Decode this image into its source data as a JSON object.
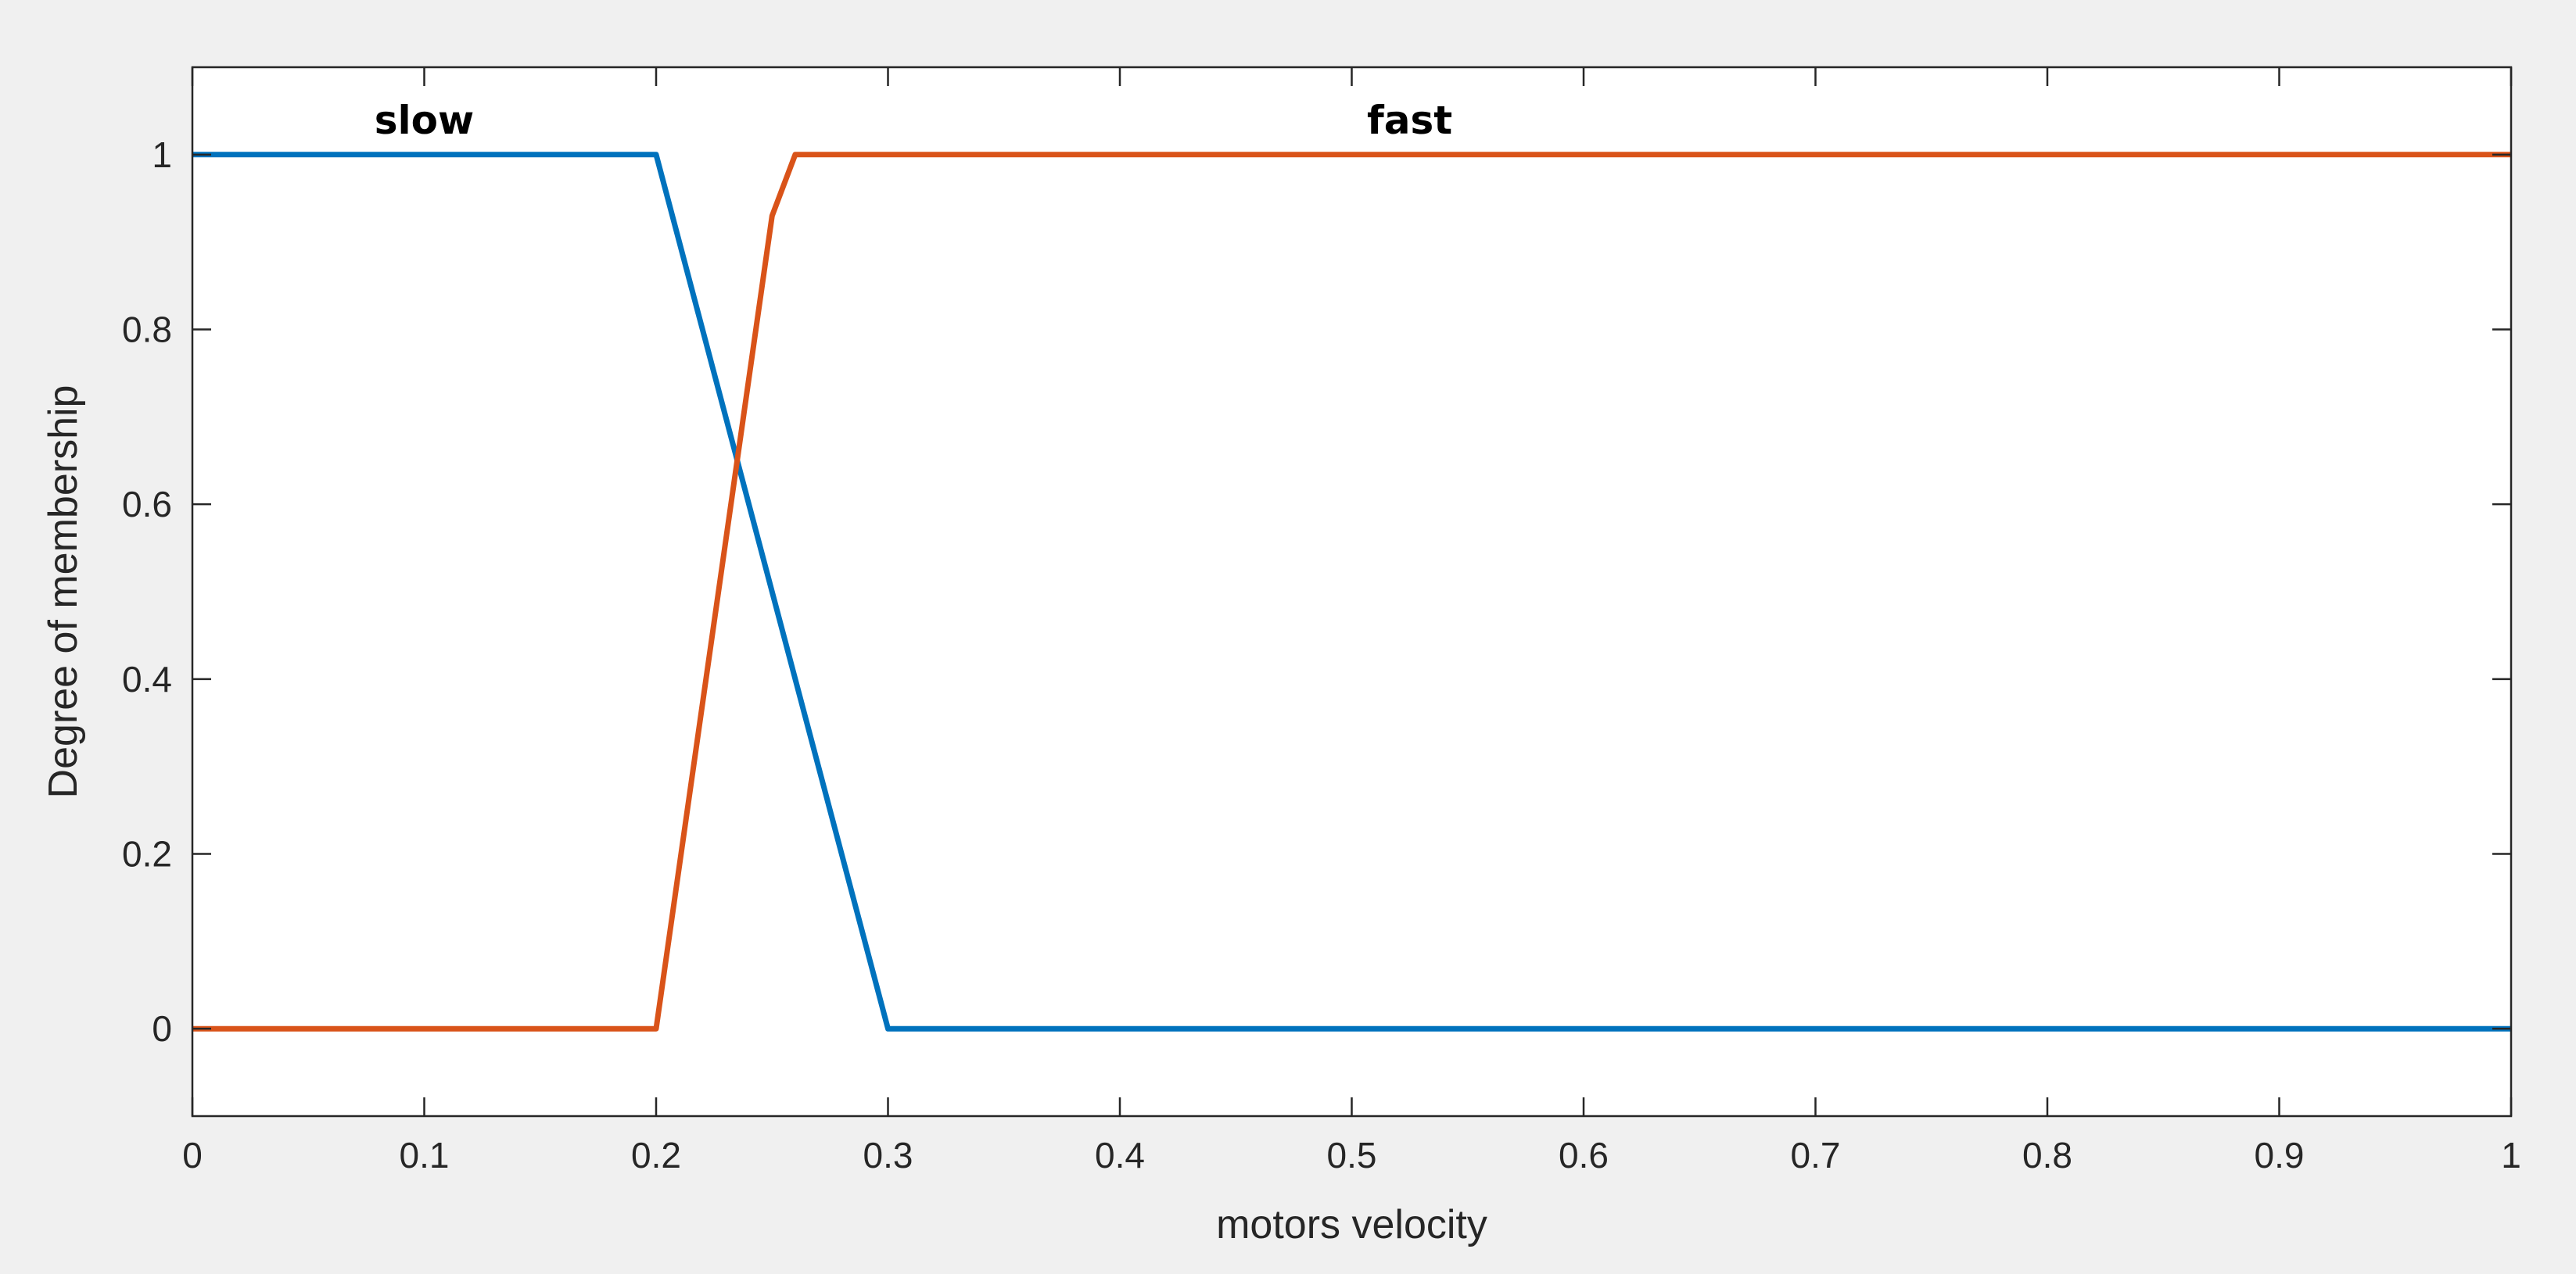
{
  "chart_data": {
    "type": "line",
    "title": "",
    "xlabel": "motors  velocity",
    "ylabel": "Degree of membership",
    "xlim": [
      0,
      1
    ],
    "ylim": [
      -0.1,
      1.1
    ],
    "xticks": [
      0,
      0.1,
      0.2,
      0.3,
      0.4,
      0.5,
      0.6,
      0.7,
      0.8,
      0.9,
      1
    ],
    "xtick_labels": [
      "0",
      "0.1",
      "0.2",
      "0.3",
      "0.4",
      "0.5",
      "0.6",
      "0.7",
      "0.8",
      "0.9",
      "1"
    ],
    "yticks": [
      0,
      0.2,
      0.4,
      0.6,
      0.8,
      1
    ],
    "ytick_labels": [
      "0",
      "0.2",
      "0.4",
      "0.6",
      "0.8",
      "1"
    ],
    "grid": false,
    "series": [
      {
        "name": "slow",
        "color": "#0072BD",
        "x": [
          0,
          0.2,
          0.3,
          1
        ],
        "y": [
          1,
          1,
          0,
          0
        ]
      },
      {
        "name": "fast",
        "color": "#D95319",
        "x": [
          0,
          0.2,
          0.25,
          0.26,
          1
        ],
        "y": [
          0,
          0,
          0.93,
          1,
          1
        ]
      }
    ],
    "annotations": [
      {
        "text": "slow",
        "x": 0.1,
        "y": 1.04
      },
      {
        "text": "fast",
        "x": 0.525,
        "y": 1.04
      }
    ]
  }
}
